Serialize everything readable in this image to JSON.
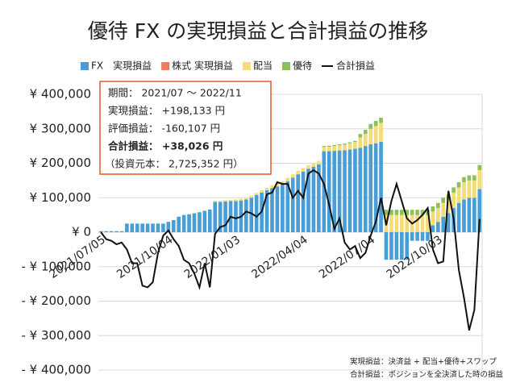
{
  "chart_data": {
    "type": "stacked_bar_line",
    "title": "優待 FX の実現損益と合計損益の推移",
    "categories": [
      "2021/07/05",
      null,
      null,
      null,
      null,
      null,
      null,
      null,
      null,
      null,
      null,
      null,
      null,
      "2021/10/04",
      null,
      null,
      null,
      null,
      null,
      null,
      null,
      null,
      null,
      null,
      null,
      null,
      "2022/01/03",
      null,
      null,
      null,
      null,
      null,
      null,
      null,
      null,
      null,
      null,
      null,
      null,
      "2022/04/04",
      null,
      null,
      null,
      null,
      null,
      null,
      null,
      null,
      null,
      null,
      null,
      null,
      "2022/07/04",
      null,
      null,
      null,
      null,
      null,
      null,
      null,
      null,
      null,
      null,
      null,
      null,
      "2022/10/03",
      null,
      null,
      null,
      null,
      null,
      null,
      null,
      null
    ],
    "series": [
      {
        "name": "FX　実現損益",
        "color": "#4a9ed6",
        "values": [
          3000,
          3000,
          3000,
          3000,
          3000,
          25000,
          25000,
          25000,
          25000,
          25000,
          25000,
          25000,
          25000,
          30000,
          35000,
          45000,
          50000,
          52000,
          55000,
          58000,
          62000,
          66000,
          88000,
          88000,
          89000,
          90000,
          90000,
          92000,
          95000,
          100000,
          108000,
          115000,
          122000,
          128000,
          133000,
          140000,
          148000,
          158000,
          168000,
          176000,
          184000,
          190000,
          197000,
          235000,
          235000,
          236000,
          237000,
          238000,
          240000,
          242000,
          245000,
          250000,
          255000,
          258000,
          262000,
          -80000,
          -80000,
          -80000,
          -80000,
          -80000,
          -25000,
          -25000,
          -25000,
          -25000,
          20000,
          30000,
          45000,
          55000,
          70000,
          85000,
          95000,
          100000,
          100000,
          125000
        ]
      },
      {
        "name": "株式 実現損益",
        "color": "#f07a5a",
        "values": [
          0,
          0,
          0,
          0,
          0,
          0,
          0,
          0,
          0,
          0,
          0,
          0,
          0,
          0,
          0,
          0,
          0,
          0,
          0,
          0,
          0,
          0,
          0,
          0,
          0,
          0,
          0,
          0,
          0,
          0,
          0,
          0,
          0,
          0,
          0,
          0,
          0,
          0,
          0,
          0,
          0,
          0,
          0,
          0,
          0,
          0,
          0,
          0,
          0,
          0,
          0,
          0,
          0,
          0,
          0,
          0,
          0,
          0,
          0,
          0,
          0,
          0,
          0,
          0,
          0,
          0,
          0,
          0,
          0,
          0,
          0,
          0,
          0,
          0
        ]
      },
      {
        "name": "配当",
        "color": "#f5dc78",
        "values": [
          0,
          0,
          0,
          0,
          0,
          0,
          0,
          0,
          0,
          0,
          0,
          0,
          0,
          0,
          0,
          0,
          0,
          0,
          0,
          0,
          0,
          0,
          3000,
          3000,
          4000,
          4000,
          5000,
          5000,
          5000,
          6000,
          6000,
          7000,
          7000,
          8000,
          8000,
          8000,
          10000,
          10000,
          10000,
          10000,
          10000,
          10000,
          10000,
          12000,
          13000,
          14000,
          15000,
          16000,
          18000,
          20000,
          30000,
          35000,
          45000,
          50000,
          55000,
          50000,
          50000,
          50000,
          50000,
          50000,
          50000,
          50000,
          50000,
          50000,
          40000,
          40000,
          40000,
          40000,
          45000,
          45000,
          50000,
          50000,
          50000,
          55000
        ]
      },
      {
        "name": "優待",
        "color": "#8cc058",
        "values": [
          0,
          0,
          0,
          0,
          0,
          0,
          0,
          0,
          0,
          0,
          0,
          0,
          0,
          0,
          0,
          0,
          0,
          0,
          0,
          0,
          0,
          0,
          0,
          0,
          0,
          0,
          0,
          0,
          0,
          0,
          0,
          0,
          0,
          0,
          0,
          0,
          0,
          0,
          0,
          0,
          0,
          0,
          0,
          3000,
          3000,
          3000,
          3000,
          3000,
          3000,
          3000,
          10000,
          12000,
          14000,
          15000,
          15000,
          15000,
          15000,
          15000,
          15000,
          15000,
          15000,
          15000,
          15000,
          15000,
          15000,
          15000,
          15000,
          15000,
          15000,
          15000,
          15000,
          15000,
          15000,
          15000
        ]
      },
      {
        "name": "合計損益",
        "color": "#111111",
        "kind": "line",
        "values": [
          0,
          -20000,
          -25000,
          -35000,
          -30000,
          -50000,
          -90000,
          -90000,
          -155000,
          -160000,
          -145000,
          -60000,
          -10000,
          5000,
          -20000,
          -40000,
          -80000,
          -90000,
          -120000,
          -160000,
          -90000,
          -160000,
          -5000,
          15000,
          20000,
          45000,
          40000,
          45000,
          60000,
          55000,
          45000,
          60000,
          110000,
          115000,
          145000,
          140000,
          140000,
          100000,
          120000,
          100000,
          170000,
          180000,
          170000,
          140000,
          80000,
          10000,
          40000,
          -30000,
          -50000,
          -40000,
          -75000,
          -60000,
          -10000,
          30000,
          100000,
          20000,
          90000,
          140000,
          90000,
          40000,
          25000,
          35000,
          50000,
          70000,
          -50000,
          -90000,
          -85000,
          120000,
          40000,
          -110000,
          -190000,
          -285000,
          -225000,
          38026
        ]
      }
    ],
    "ylim": [
      -400000,
      400000
    ],
    "yticks": [
      {
        "value": -400000,
        "label": "- ¥ 400,000"
      },
      {
        "value": -300000,
        "label": "- ¥ 300,000"
      },
      {
        "value": -200000,
        "label": "- ¥ 200,000"
      },
      {
        "value": -100000,
        "label": "- ¥ 100,000"
      },
      {
        "value": 0,
        "label": "¥ 0"
      },
      {
        "value": 100000,
        "label": "¥ 100,000"
      },
      {
        "value": 200000,
        "label": "¥ 200,000"
      },
      {
        "value": 300000,
        "label": "¥ 300,000"
      },
      {
        "value": 400000,
        "label": "¥ 400,000"
      }
    ],
    "negative_tick_color": "#cc0000",
    "grid": true,
    "legend": "top",
    "annotation_box": [
      "期間： 2021/07 ～ 2022/11",
      "実現損益： +198,133 円",
      "評価損益： -160,107 円",
      "合計損益： +38,026 円",
      "（投資元本： 2,725,352 円）"
    ],
    "annotation_highlight_color": "#e8562a",
    "footnotes": [
      "実現損益：決済益 + 配当+優待+スワップ",
      "合計損益：ポジションを全決済した時の損益"
    ]
  }
}
